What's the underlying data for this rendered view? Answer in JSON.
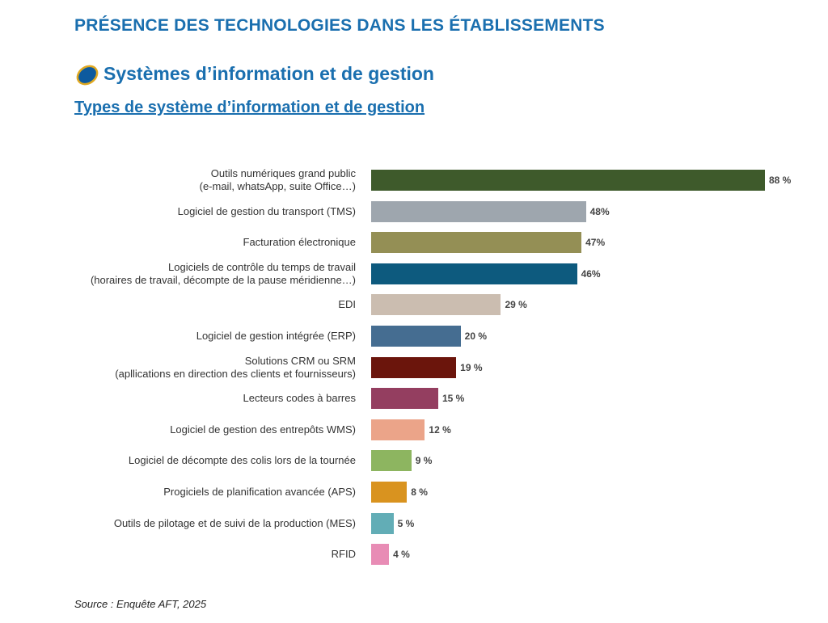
{
  "chart_data": {
    "type": "bar",
    "orientation": "horizontal",
    "title": "PRÉSENCE DES TECHNOLOGIES DANS LES ÉTABLISSEMENTS",
    "subtitle": "Systèmes d’information et de gestion",
    "section_title": "Types de système d’information et de gestion",
    "source": "Source : Enquête AFT, 2025",
    "categories": [
      "Outils numériques grand public\n(e-mail, whatsApp, suite Office…)",
      "Logiciel de gestion du transport (TMS)",
      "Facturation électronique",
      "Logiciels de contrôle du temps de travail\n(horaires de travail, décompte de la pause méridienne…)",
      "EDI",
      "Logiciel de gestion intégrée (ERP)",
      "Solutions CRM ou SRM\n(apllications en direction des clients et fournisseurs)",
      "Lecteurs codes à barres",
      "Logiciel de gestion des entrepôts WMS)",
      "Logiciel de décompte des colis lors de la tournée",
      "Progiciels de planification avancée (APS)",
      "Outils de pilotage et de suivi de la production (MES)",
      "RFID"
    ],
    "values": [
      88,
      48,
      47,
      46,
      29,
      20,
      19,
      15,
      12,
      9,
      8,
      5,
      4
    ],
    "value_labels": [
      "88 %",
      "48%",
      "47%",
      "46%",
      "29 %",
      "20 %",
      "19 %",
      "15 %",
      "12 %",
      "9 %",
      "8 %",
      "5 %",
      "4 %"
    ],
    "colors": [
      "#3e5a2b",
      "#9ea6ae",
      "#948f55",
      "#0d5a7e",
      "#cbbdb0",
      "#456d91",
      "#6b150c",
      "#943e60",
      "#eba489",
      "#8db560",
      "#d9931f",
      "#62adb6",
      "#e88cb5"
    ]
  }
}
